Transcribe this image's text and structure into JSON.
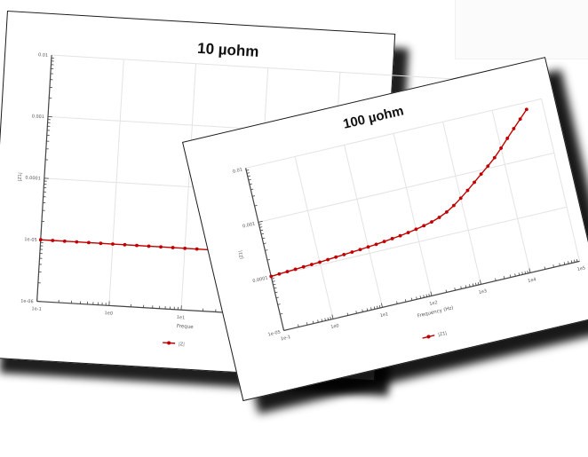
{
  "colors": {
    "series": "#c00000",
    "grid": "#e3e3e3",
    "axis": "#444444"
  },
  "chart_data": [
    {
      "type": "line",
      "title": "10 µohm",
      "xlabel": "Freque",
      "ylabel": "|Z1|",
      "x_scale": "log",
      "y_scale": "log",
      "xlim": [
        0.1,
        100000
      ],
      "ylim": [
        1e-06,
        0.01
      ],
      "x_ticks": [
        "1e-1",
        "1e0",
        "1e1"
      ],
      "y_ticks": [
        "0.01",
        "0.001",
        "0.0001",
        "1e-05",
        "1e-06"
      ],
      "legend": "|Z|",
      "series": [
        {
          "x": [
            0.1,
            0.1468,
            0.2154,
            0.3162,
            0.4642,
            0.6813,
            1,
            1.468,
            2.154,
            3.162,
            4.642,
            6.813,
            10,
            14.68,
            21.54,
            31.62,
            46.42,
            68.13,
            100,
            146.8,
            215.4,
            316.2,
            464.2,
            681.3,
            1000,
            1468,
            2154,
            3162,
            4642,
            6813,
            10000
          ],
          "y": [
            1e-05,
            1e-05,
            1e-05,
            1e-05,
            1e-05,
            1e-05,
            1e-05,
            1e-05,
            1e-05,
            1e-05,
            1e-05,
            1e-05,
            1e-05,
            1e-05,
            1e-05,
            1e-05,
            1e-05,
            1e-05,
            1e-05,
            1e-05,
            1e-05,
            1e-05,
            1e-05,
            1e-05,
            1e-05,
            1e-05,
            1e-05,
            1e-05,
            1e-05,
            1e-05,
            1e-05
          ]
        }
      ]
    },
    {
      "type": "line",
      "title": "100 µohm",
      "xlabel": "Frequency (Hz)",
      "ylabel": "|Z1|",
      "x_scale": "log",
      "y_scale": "log",
      "xlim": [
        0.1,
        100000
      ],
      "ylim": [
        1e-05,
        0.01
      ],
      "x_ticks": [
        "1e-1",
        "1e0",
        "1e1",
        "1e2",
        "1e3",
        "1e4",
        "1e5"
      ],
      "y_ticks": [
        "0.01",
        "0.001",
        "0.0001",
        "1e-05"
      ],
      "legend": "|Z1|",
      "series": [
        {
          "x": [
            0.1,
            0.1468,
            0.2154,
            0.3162,
            0.4642,
            0.6813,
            1,
            1.468,
            2.154,
            3.162,
            4.642,
            6.813,
            10,
            14.68,
            21.54,
            31.62,
            46.42,
            68.13,
            100,
            146.8,
            215.4,
            316.2,
            464.2,
            681.3,
            1000,
            1468,
            2154,
            3162,
            4642,
            6813,
            10000,
            14678,
            21544,
            31623,
            46416
          ],
          "y": [
            0.0001,
            0.000102,
            0.000104,
            0.000106,
            0.000108,
            0.00011,
            0.000112,
            0.000115,
            0.000118,
            0.000121,
            0.000124,
            0.000127,
            0.000131,
            0.000135,
            0.00014,
            0.000146,
            0.000152,
            0.00016,
            0.00017,
            0.000182,
            0.000197,
            0.00022,
            0.000255,
            0.00031,
            0.00039,
            0.0005,
            0.00065,
            0.00085,
            0.0011,
            0.00145,
            0.002,
            0.0028,
            0.0039,
            0.0054,
            0.0075
          ]
        }
      ]
    }
  ]
}
